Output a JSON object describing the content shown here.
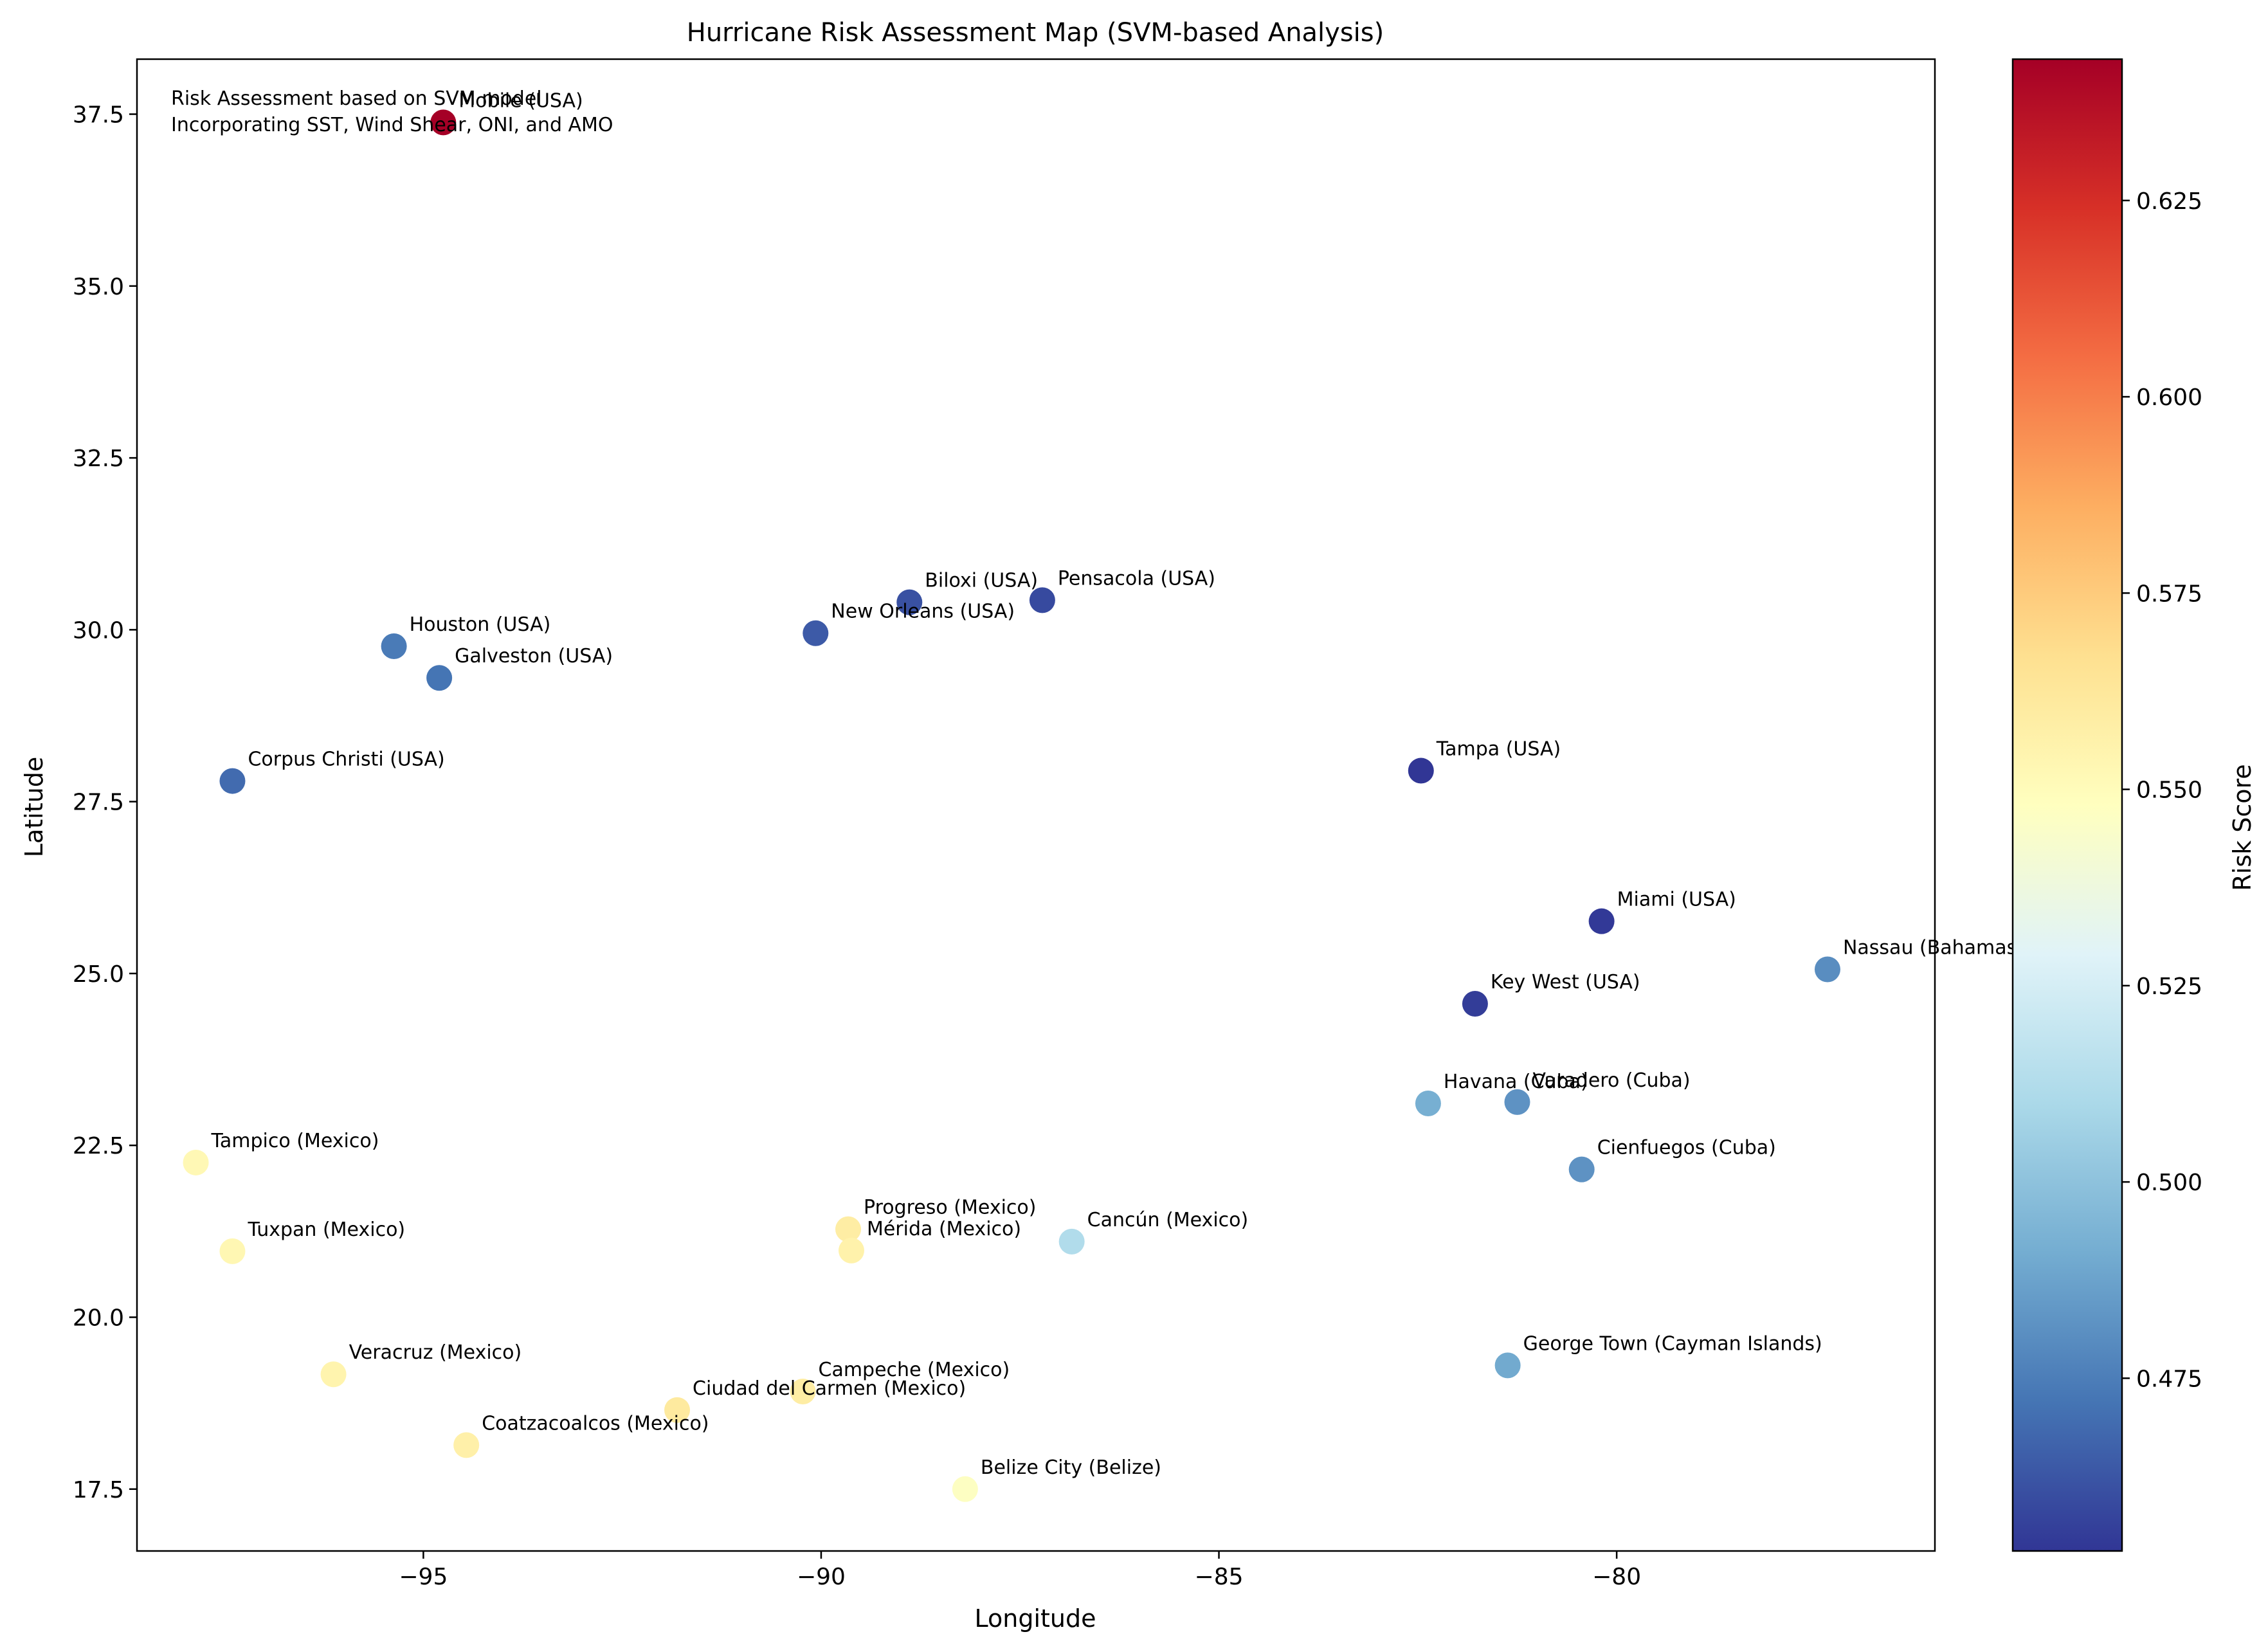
{
  "chart_data": {
    "type": "scatter",
    "title": "Hurricane Risk Assessment Map (SVM-based Analysis)",
    "xlabel": "Longitude",
    "ylabel": "Latitude",
    "xlim": [
      -98.6,
      -76.0
    ],
    "ylim": [
      16.6,
      38.3
    ],
    "xticks": [
      -95,
      -90,
      -85,
      -80
    ],
    "yticks": [
      17.5,
      20.0,
      22.5,
      25.0,
      27.5,
      30.0,
      32.5,
      35.0,
      37.5
    ],
    "xtick_labels": [
      "−95",
      "−90",
      "−85",
      "−80"
    ],
    "ytick_labels": [
      "17.5",
      "20.0",
      "22.5",
      "25.0",
      "27.5",
      "30.0",
      "32.5",
      "35.0",
      "37.5"
    ],
    "grid": false,
    "annotation_lines": [
      "Risk Assessment based on SVM model",
      "Incorporating SST, Wind Shear, ONI, and AMO"
    ],
    "colorbar": {
      "label": "Risk Score",
      "colormap": "RdYlBu_r",
      "range": [
        0.453,
        0.643
      ],
      "ticks": [
        0.475,
        0.5,
        0.525,
        0.55,
        0.575,
        0.6,
        0.625
      ],
      "tick_labels": [
        "0.475",
        "0.500",
        "0.525",
        "0.550",
        "0.575",
        "0.600",
        "0.625"
      ],
      "colors": [
        "#313695",
        "#4575b4",
        "#74add1",
        "#abd9e9",
        "#e0f3f8",
        "#ffffbf",
        "#fee090",
        "#fdae61",
        "#f46d43",
        "#d73027",
        "#a50026"
      ]
    },
    "points": [
      {
        "name": "Mobile (USA)",
        "x": -94.75,
        "y": 37.38,
        "risk": 0.643
      },
      {
        "name": "Biloxi (USA)",
        "x": -88.89,
        "y": 30.4,
        "risk": 0.461
      },
      {
        "name": "Pensacola (USA)",
        "x": -87.22,
        "y": 30.43,
        "risk": 0.459
      },
      {
        "name": "New Orleans (USA)",
        "x": -90.07,
        "y": 29.95,
        "risk": 0.464
      },
      {
        "name": "Houston (USA)",
        "x": -95.37,
        "y": 29.76,
        "risk": 0.474
      },
      {
        "name": "Galveston (USA)",
        "x": -94.8,
        "y": 29.3,
        "risk": 0.472
      },
      {
        "name": "Corpus Christi (USA)",
        "x": -97.4,
        "y": 27.8,
        "risk": 0.469
      },
      {
        "name": "Tampa (USA)",
        "x": -82.46,
        "y": 27.95,
        "risk": 0.453
      },
      {
        "name": "Miami (USA)",
        "x": -80.19,
        "y": 25.76,
        "risk": 0.454
      },
      {
        "name": "Nassau (Bahamas)",
        "x": -77.35,
        "y": 25.06,
        "risk": 0.48
      },
      {
        "name": "Key West (USA)",
        "x": -81.78,
        "y": 24.56,
        "risk": 0.455
      },
      {
        "name": "Havana (Cuba)",
        "x": -82.37,
        "y": 23.11,
        "risk": 0.492
      },
      {
        "name": "Varadero (Cuba)",
        "x": -81.25,
        "y": 23.13,
        "risk": 0.482
      },
      {
        "name": "Cienfuegos (Cuba)",
        "x": -80.44,
        "y": 22.15,
        "risk": 0.482
      },
      {
        "name": "Tampico (Mexico)",
        "x": -97.86,
        "y": 22.25,
        "risk": 0.552
      },
      {
        "name": "Progreso (Mexico)",
        "x": -89.66,
        "y": 21.28,
        "risk": 0.559
      },
      {
        "name": "Mérida (Mexico)",
        "x": -89.62,
        "y": 20.97,
        "risk": 0.556
      },
      {
        "name": "Cancún (Mexico)",
        "x": -86.85,
        "y": 21.1,
        "risk": 0.512
      },
      {
        "name": "Tuxpan (Mexico)",
        "x": -97.4,
        "y": 20.96,
        "risk": 0.553
      },
      {
        "name": "George Town (Cayman Islands)",
        "x": -81.37,
        "y": 19.3,
        "risk": 0.49
      },
      {
        "name": "Veracruz (Mexico)",
        "x": -96.13,
        "y": 19.17,
        "risk": 0.555
      },
      {
        "name": "Campeche (Mexico)",
        "x": -90.23,
        "y": 18.92,
        "risk": 0.559
      },
      {
        "name": "Ciudad del Carmen (Mexico)",
        "x": -91.81,
        "y": 18.65,
        "risk": 0.561
      },
      {
        "name": "Coatzacoalcos (Mexico)",
        "x": -94.46,
        "y": 18.14,
        "risk": 0.557
      },
      {
        "name": "Belize City (Belize)",
        "x": -88.19,
        "y": 17.5,
        "risk": 0.547
      }
    ]
  }
}
